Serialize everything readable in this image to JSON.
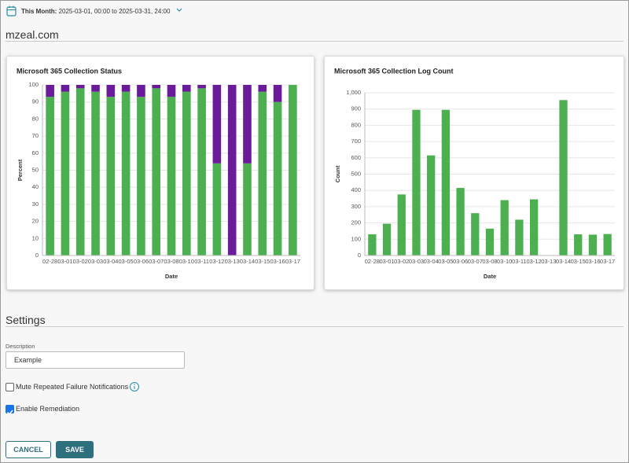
{
  "header": {
    "period_label": "This Month:",
    "period": "2025-03-01, 00:00 to 2025-03-31, 24:00"
  },
  "site": "mzeal.com",
  "chart_data": [
    {
      "type": "bar",
      "stacked": true,
      "title": "Microsoft 365 Collection Status",
      "x_label": "Date",
      "y_label": "Percent",
      "categories": [
        "02-28",
        "03-01",
        "03-02",
        "03-03",
        "03-04",
        "03-05",
        "03-06",
        "03-07",
        "03-08",
        "03-10",
        "03-11",
        "03-12",
        "03-13",
        "03-14",
        "03-15",
        "03-16",
        "03-17"
      ],
      "series": [
        {
          "color": "#4caf50",
          "values": [
            93,
            96,
            98,
            96,
            93,
            96,
            93,
            98,
            93,
            96,
            98,
            54,
            0,
            54,
            96,
            90,
            100
          ]
        },
        {
          "color": "#6a1b9a",
          "values": [
            7,
            4,
            2,
            4,
            7,
            4,
            7,
            2,
            7,
            4,
            2,
            46,
            100,
            46,
            4,
            10,
            0
          ]
        }
      ],
      "ylim": [
        0,
        100
      ],
      "yticks": [
        0,
        10,
        20,
        30,
        40,
        50,
        60,
        70,
        80,
        90,
        100
      ],
      "grid": true
    },
    {
      "type": "bar",
      "title": "Microsoft 365 Collection Log Count",
      "x_label": "Date",
      "y_label": "Count",
      "categories": [
        "02-28",
        "03-01",
        "03-02",
        "03-03",
        "03-04",
        "03-05",
        "03-06",
        "03-07",
        "03-08",
        "03-10",
        "03-11",
        "03-12",
        "03-13",
        "03-14",
        "03-15",
        "03-16",
        "03-17"
      ],
      "series": [
        {
          "color": "#4caf50",
          "values": [
            130,
            195,
            375,
            895,
            615,
            895,
            415,
            260,
            165,
            340,
            220,
            345,
            0,
            955,
            130,
            128,
            132
          ]
        }
      ],
      "ylim": [
        0,
        1000
      ],
      "yticks": [
        0,
        100,
        200,
        300,
        400,
        500,
        600,
        700,
        800,
        900,
        {
          "value": 1000,
          "label": "1,000"
        }
      ],
      "grid": true
    }
  ],
  "settings": {
    "title": "Settings",
    "description_label": "Description",
    "description_value": "Example",
    "mute_label": "Mute Repeated Failure Notifications",
    "mute_checked": false,
    "remediation_label": "Enable Remediation",
    "remediation_checked": true
  },
  "buttons": {
    "cancel": "CANCEL",
    "save": "SAVE"
  }
}
